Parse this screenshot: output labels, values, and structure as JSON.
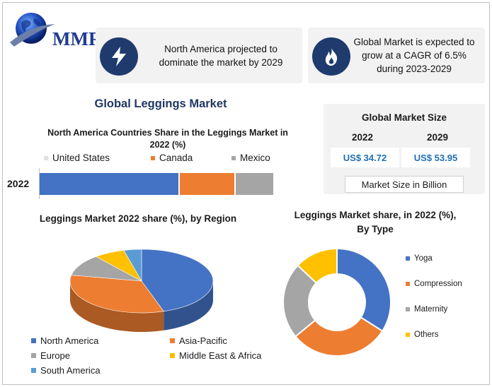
{
  "brand": {
    "logo_text": "MMR"
  },
  "info": [
    {
      "icon": "lightning-icon",
      "text": "North America projected to dominate the market by 2029"
    },
    {
      "icon": "flame-icon",
      "text": "Global Market is expected to grow at a CAGR of 6.5% during 2023-2029"
    }
  ],
  "main_title": "Global Leggings Market",
  "market_size": {
    "title": "Global Market Size",
    "years": [
      "2022",
      "2029"
    ],
    "values": [
      "US$ 34.72",
      "US$ 53.95"
    ],
    "note": "Market Size in Billion"
  },
  "colors": {
    "blue": "#4472c4",
    "orange": "#ed7d31",
    "gray": "#a5a5a5",
    "yellow": "#ffc000",
    "lightblue": "#5b9bd5",
    "navy": "#1f3b6e"
  },
  "chart_data": [
    {
      "type": "bar",
      "orientation": "horizontal-stacked",
      "title": "North America Countries Share in the Leggings Market in 2022 (%)",
      "categories": [
        "2022"
      ],
      "series": [
        {
          "name": "United States",
          "values": [
            60
          ],
          "color": "#4472c4"
        },
        {
          "name": "Canada",
          "values": [
            24
          ],
          "color": "#ed7d31"
        },
        {
          "name": "Mexico",
          "values": [
            16
          ],
          "color": "#a5a5a5"
        }
      ],
      "legend": "top"
    },
    {
      "type": "pie",
      "style": "3d",
      "title": "Leggings Market 2022 share (%), by Region",
      "labels": [
        "North America",
        "Asia-Pacific",
        "Europe",
        "Middle East & Africa",
        "South America"
      ],
      "values": [
        45,
        33,
        11,
        7,
        4
      ],
      "colors": [
        "#4472c4",
        "#ed7d31",
        "#a5a5a5",
        "#ffc000",
        "#5b9bd5"
      ],
      "legend": "bottom"
    },
    {
      "type": "pie",
      "style": "donut",
      "title": "Leggings Market share, in 2022 (%), By Type",
      "labels": [
        "Yoga",
        "Compression",
        "Maternity",
        "Others"
      ],
      "values": [
        34,
        30,
        23,
        13
      ],
      "colors": [
        "#4472c4",
        "#ed7d31",
        "#a5a5a5",
        "#ffc000"
      ],
      "legend": "right"
    }
  ]
}
